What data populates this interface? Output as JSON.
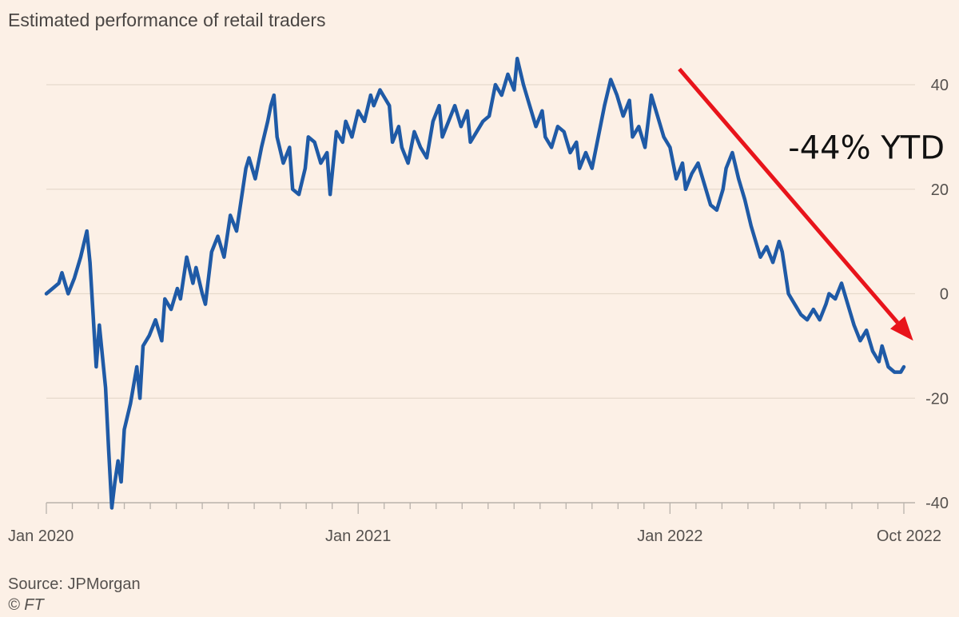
{
  "chart_data": {
    "type": "line",
    "title": "Estimated performance of retail traders",
    "xlabel": "",
    "ylabel": "",
    "ylim": [
      -40,
      40
    ],
    "yticks": [
      40,
      20,
      0,
      -20,
      -40
    ],
    "y_tick_labels": [
      "40",
      "20",
      "0",
      "-20",
      "-40"
    ],
    "xlim": [
      2020.0,
      2022.75
    ],
    "x_tick_labels": [
      {
        "x": 2020.0,
        "label": "Jan 2020"
      },
      {
        "x": 2021.0,
        "label": "Jan 2021"
      },
      {
        "x": 2022.0,
        "label": "Jan 2022"
      },
      {
        "x": 2022.75,
        "label": "Oct 2022"
      }
    ],
    "grid": true,
    "series": [
      {
        "name": "Estimated performance of retail traders (%)",
        "color": "#1f5aa6",
        "points": [
          [
            2020.0,
            0
          ],
          [
            2020.02,
            1
          ],
          [
            2020.04,
            2
          ],
          [
            2020.05,
            4
          ],
          [
            2020.07,
            0
          ],
          [
            2020.09,
            3
          ],
          [
            2020.11,
            7
          ],
          [
            2020.13,
            12
          ],
          [
            2020.14,
            6
          ],
          [
            2020.15,
            -4
          ],
          [
            2020.16,
            -14
          ],
          [
            2020.17,
            -6
          ],
          [
            2020.18,
            -12
          ],
          [
            2020.19,
            -18
          ],
          [
            2020.2,
            -30
          ],
          [
            2020.21,
            -41
          ],
          [
            2020.22,
            -36
          ],
          [
            2020.23,
            -32
          ],
          [
            2020.24,
            -36
          ],
          [
            2020.25,
            -26
          ],
          [
            2020.27,
            -21
          ],
          [
            2020.29,
            -14
          ],
          [
            2020.3,
            -20
          ],
          [
            2020.31,
            -10
          ],
          [
            2020.33,
            -8
          ],
          [
            2020.35,
            -5
          ],
          [
            2020.37,
            -9
          ],
          [
            2020.38,
            -1
          ],
          [
            2020.4,
            -3
          ],
          [
            2020.42,
            1
          ],
          [
            2020.43,
            -1
          ],
          [
            2020.45,
            7
          ],
          [
            2020.47,
            2
          ],
          [
            2020.48,
            5
          ],
          [
            2020.5,
            0
          ],
          [
            2020.51,
            -2
          ],
          [
            2020.53,
            8
          ],
          [
            2020.55,
            11
          ],
          [
            2020.57,
            7
          ],
          [
            2020.59,
            15
          ],
          [
            2020.61,
            12
          ],
          [
            2020.63,
            20
          ],
          [
            2020.64,
            24
          ],
          [
            2020.65,
            26
          ],
          [
            2020.67,
            22
          ],
          [
            2020.69,
            28
          ],
          [
            2020.71,
            33
          ],
          [
            2020.72,
            36
          ],
          [
            2020.73,
            38
          ],
          [
            2020.74,
            30
          ],
          [
            2020.76,
            25
          ],
          [
            2020.78,
            28
          ],
          [
            2020.79,
            20
          ],
          [
            2020.81,
            19
          ],
          [
            2020.83,
            24
          ],
          [
            2020.84,
            30
          ],
          [
            2020.86,
            29
          ],
          [
            2020.88,
            25
          ],
          [
            2020.9,
            27
          ],
          [
            2020.91,
            19
          ],
          [
            2020.93,
            31
          ],
          [
            2020.95,
            29
          ],
          [
            2020.96,
            33
          ],
          [
            2020.98,
            30
          ],
          [
            2021.0,
            35
          ],
          [
            2021.02,
            33
          ],
          [
            2021.04,
            38
          ],
          [
            2021.05,
            36
          ],
          [
            2021.07,
            39
          ],
          [
            2021.08,
            38
          ],
          [
            2021.1,
            36
          ],
          [
            2021.11,
            29
          ],
          [
            2021.13,
            32
          ],
          [
            2021.14,
            28
          ],
          [
            2021.16,
            25
          ],
          [
            2021.18,
            31
          ],
          [
            2021.2,
            28
          ],
          [
            2021.22,
            26
          ],
          [
            2021.24,
            33
          ],
          [
            2021.26,
            36
          ],
          [
            2021.27,
            30
          ],
          [
            2021.29,
            33
          ],
          [
            2021.31,
            36
          ],
          [
            2021.33,
            32
          ],
          [
            2021.35,
            35
          ],
          [
            2021.36,
            29
          ],
          [
            2021.38,
            31
          ],
          [
            2021.4,
            33
          ],
          [
            2021.42,
            34
          ],
          [
            2021.44,
            40
          ],
          [
            2021.46,
            38
          ],
          [
            2021.48,
            42
          ],
          [
            2021.5,
            39
          ],
          [
            2021.51,
            45
          ],
          [
            2021.53,
            40
          ],
          [
            2021.55,
            36
          ],
          [
            2021.57,
            32
          ],
          [
            2021.59,
            35
          ],
          [
            2021.6,
            30
          ],
          [
            2021.62,
            28
          ],
          [
            2021.64,
            32
          ],
          [
            2021.66,
            31
          ],
          [
            2021.68,
            27
          ],
          [
            2021.7,
            29
          ],
          [
            2021.71,
            24
          ],
          [
            2021.73,
            27
          ],
          [
            2021.75,
            24
          ],
          [
            2021.77,
            30
          ],
          [
            2021.79,
            36
          ],
          [
            2021.81,
            41
          ],
          [
            2021.83,
            38
          ],
          [
            2021.85,
            34
          ],
          [
            2021.87,
            37
          ],
          [
            2021.88,
            30
          ],
          [
            2021.9,
            32
          ],
          [
            2021.92,
            28
          ],
          [
            2021.94,
            38
          ],
          [
            2021.96,
            34
          ],
          [
            2021.98,
            30
          ],
          [
            2022.0,
            28
          ],
          [
            2022.02,
            22
          ],
          [
            2022.04,
            25
          ],
          [
            2022.05,
            20
          ],
          [
            2022.07,
            23
          ],
          [
            2022.09,
            25
          ],
          [
            2022.11,
            21
          ],
          [
            2022.13,
            17
          ],
          [
            2022.15,
            16
          ],
          [
            2022.17,
            20
          ],
          [
            2022.18,
            24
          ],
          [
            2022.2,
            27
          ],
          [
            2022.22,
            22
          ],
          [
            2022.24,
            18
          ],
          [
            2022.26,
            13
          ],
          [
            2022.27,
            11
          ],
          [
            2022.29,
            7
          ],
          [
            2022.31,
            9
          ],
          [
            2022.33,
            6
          ],
          [
            2022.35,
            10
          ],
          [
            2022.36,
            8
          ],
          [
            2022.38,
            0
          ],
          [
            2022.4,
            -2
          ],
          [
            2022.42,
            -4
          ],
          [
            2022.44,
            -5
          ],
          [
            2022.46,
            -3
          ],
          [
            2022.48,
            -5
          ],
          [
            2022.5,
            -2
          ],
          [
            2022.51,
            0
          ],
          [
            2022.53,
            -1
          ],
          [
            2022.55,
            2
          ],
          [
            2022.57,
            -2
          ],
          [
            2022.59,
            -6
          ],
          [
            2022.61,
            -9
          ],
          [
            2022.63,
            -7
          ],
          [
            2022.65,
            -11
          ],
          [
            2022.67,
            -13
          ],
          [
            2022.68,
            -10
          ],
          [
            2022.7,
            -14
          ],
          [
            2022.72,
            -15
          ],
          [
            2022.74,
            -15
          ],
          [
            2022.75,
            -14
          ]
        ]
      }
    ],
    "annotations": [
      {
        "type": "arrow",
        "color": "#e8141b",
        "from": [
          2022.03,
          43
        ],
        "to": [
          2022.78,
          -9
        ]
      },
      {
        "type": "text",
        "text": "-44% YTD",
        "at": [
          2022.63,
          28
        ],
        "color": "#111111"
      }
    ]
  },
  "footer": {
    "source": "Source: JPMorgan",
    "credit": "© FT"
  }
}
